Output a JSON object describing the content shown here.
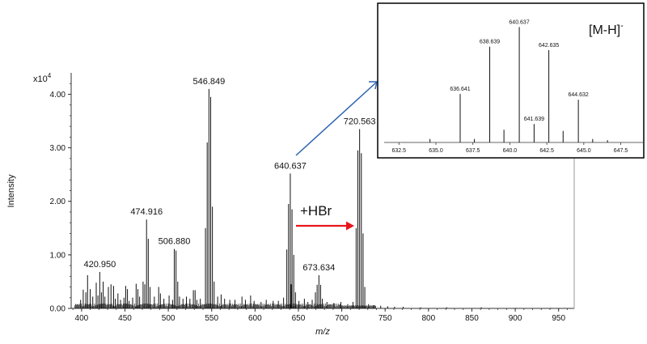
{
  "chart_data": [
    {
      "type": "bar",
      "title": "",
      "xlabel": "m/z",
      "ylabel": "Intensity",
      "y_multiplier": "x10^4",
      "xlim": [
        388,
        968
      ],
      "ylim": [
        0,
        4.4
      ],
      "x_ticks": [
        400,
        450,
        500,
        550,
        600,
        650,
        700,
        750,
        800,
        850,
        900,
        950
      ],
      "y_ticks": [
        "0.00",
        "1.00",
        "2.00",
        "3.00",
        "4.00"
      ],
      "grid": false,
      "peak_labels": [
        {
          "x": 420.95,
          "y": 0.68,
          "label": "420.950"
        },
        {
          "x": 474.916,
          "y": 1.66,
          "label": "474.916"
        },
        {
          "x": 506.88,
          "y": 1.11,
          "label": "506.880"
        },
        {
          "x": 546.849,
          "y": 4.1,
          "label": "546.849"
        },
        {
          "x": 640.637,
          "y": 2.52,
          "label": "640.637"
        },
        {
          "x": 673.634,
          "y": 0.62,
          "label": "673.634"
        },
        {
          "x": 720.563,
          "y": 3.35,
          "label": "720.563"
        }
      ],
      "peaks": [
        [
          398.9,
          0.16
        ],
        [
          401.9,
          0.35
        ],
        [
          404.9,
          0.3
        ],
        [
          406.9,
          0.62
        ],
        [
          409.9,
          0.36
        ],
        [
          412.9,
          0.22
        ],
        [
          416.9,
          0.48
        ],
        [
          418.9,
          0.24
        ],
        [
          420.95,
          0.68
        ],
        [
          422.9,
          0.3
        ],
        [
          424.9,
          0.5
        ],
        [
          426.9,
          0.22
        ],
        [
          430.9,
          0.4
        ],
        [
          433.9,
          0.45
        ],
        [
          436.9,
          0.42
        ],
        [
          438.9,
          0.18
        ],
        [
          441.9,
          0.28
        ],
        [
          444.9,
          0.16
        ],
        [
          448.9,
          0.2
        ],
        [
          450.9,
          0.42
        ],
        [
          452.9,
          0.36
        ],
        [
          454.9,
          0.14
        ],
        [
          458.9,
          0.2
        ],
        [
          462.9,
          0.46
        ],
        [
          464.9,
          0.36
        ],
        [
          466.9,
          0.22
        ],
        [
          470.9,
          0.5
        ],
        [
          472.9,
          0.45
        ],
        [
          474.916,
          1.66
        ],
        [
          476.9,
          1.3
        ],
        [
          478.9,
          0.4
        ],
        [
          483.9,
          0.22
        ],
        [
          488.9,
          0.4
        ],
        [
          490.9,
          0.28
        ],
        [
          494.9,
          0.18
        ],
        [
          500.9,
          0.24
        ],
        [
          504.9,
          0.16
        ],
        [
          506.88,
          1.11
        ],
        [
          508.9,
          1.08
        ],
        [
          510.9,
          0.5
        ],
        [
          512.9,
          0.22
        ],
        [
          516.9,
          0.18
        ],
        [
          520.9,
          0.22
        ],
        [
          524.9,
          0.18
        ],
        [
          528.9,
          0.34
        ],
        [
          530.9,
          0.34
        ],
        [
          532.9,
          0.16
        ],
        [
          536.9,
          0.18
        ],
        [
          542.85,
          1.5
        ],
        [
          544.85,
          3.1
        ],
        [
          546.849,
          4.1
        ],
        [
          548.85,
          3.95
        ],
        [
          550.85,
          1.9
        ],
        [
          552.85,
          0.5
        ],
        [
          556.9,
          0.22
        ],
        [
          560.9,
          0.26
        ],
        [
          564.9,
          0.18
        ],
        [
          570.9,
          0.16
        ],
        [
          576.9,
          0.16
        ],
        [
          584.9,
          0.22
        ],
        [
          588.9,
          0.16
        ],
        [
          594.9,
          0.24
        ],
        [
          598.9,
          0.14
        ],
        [
          606.9,
          0.12
        ],
        [
          612.9,
          0.16
        ],
        [
          620.9,
          0.14
        ],
        [
          626.9,
          0.14
        ],
        [
          632.9,
          0.2
        ],
        [
          636.64,
          1.1
        ],
        [
          638.64,
          1.95
        ],
        [
          640.637,
          2.52
        ],
        [
          641.64,
          0.45
        ],
        [
          642.64,
          1.85
        ],
        [
          644.63,
          1.0
        ],
        [
          646.6,
          0.3
        ],
        [
          650.6,
          0.14
        ],
        [
          656.9,
          0.18
        ],
        [
          660.9,
          0.12
        ],
        [
          665.9,
          0.16
        ],
        [
          669.6,
          0.3
        ],
        [
          671.6,
          0.44
        ],
        [
          673.634,
          0.62
        ],
        [
          675.6,
          0.44
        ],
        [
          677.6,
          0.18
        ],
        [
          682.9,
          0.12
        ],
        [
          690.9,
          0.1
        ],
        [
          698.9,
          0.12
        ],
        [
          706.9,
          0.08
        ],
        [
          712.9,
          0.12
        ],
        [
          716.56,
          1.5
        ],
        [
          718.56,
          2.95
        ],
        [
          720.563,
          3.35
        ],
        [
          722.56,
          2.9
        ],
        [
          724.56,
          1.4
        ],
        [
          726.56,
          0.4
        ],
        [
          730.9,
          0.08
        ],
        [
          736.9,
          0.06
        ],
        [
          744.9,
          0.05
        ],
        [
          752.9,
          0.04
        ],
        [
          760.9,
          0.03
        ],
        [
          770.9,
          0.03
        ],
        [
          790.9,
          0.02
        ],
        [
          820.9,
          0.02
        ],
        [
          860.9,
          0.02
        ],
        [
          900.9,
          0.01
        ],
        [
          940.9,
          0.01
        ]
      ]
    },
    {
      "type": "bar",
      "title": "",
      "annotation": "[M-H]-",
      "xlim": [
        631.5,
        649
      ],
      "ylim": [
        0,
        1.08
      ],
      "x_ticks": [
        "632.5",
        "635.0",
        "637.5",
        "640.0",
        "642.5",
        "645.0",
        "647.5"
      ],
      "peak_labels": [
        {
          "x": 636.641,
          "y": 0.42,
          "label": "636.641"
        },
        {
          "x": 638.639,
          "y": 0.83,
          "label": "638.639"
        },
        {
          "x": 640.637,
          "y": 1.0,
          "label": "640.637"
        },
        {
          "x": 641.639,
          "y": 0.16,
          "label": "641.639"
        },
        {
          "x": 642.635,
          "y": 0.8,
          "label": "642.635"
        },
        {
          "x": 644.632,
          "y": 0.37,
          "label": "644.632"
        }
      ],
      "peaks": [
        [
          634.6,
          0.03
        ],
        [
          636.641,
          0.42
        ],
        [
          637.6,
          0.03
        ],
        [
          638.639,
          0.83
        ],
        [
          639.6,
          0.11
        ],
        [
          640.637,
          1.0
        ],
        [
          641.639,
          0.16
        ],
        [
          642.635,
          0.8
        ],
        [
          643.6,
          0.1
        ],
        [
          644.632,
          0.37
        ],
        [
          645.6,
          0.03
        ],
        [
          646.6,
          0.02
        ]
      ]
    }
  ],
  "annotations": {
    "arrow_label": "+HBr",
    "y_multiplier_base": "x10",
    "y_multiplier_exp": "4",
    "inset_label_main": "[M-H]",
    "inset_label_sup": "-"
  },
  "colors": {
    "axis": "#333333",
    "peaks": "#111111",
    "red_arrow": "#e8161b",
    "blue_arrow": "#2c64b0",
    "inset_border": "#000000",
    "frame": "#9a9a9a"
  }
}
